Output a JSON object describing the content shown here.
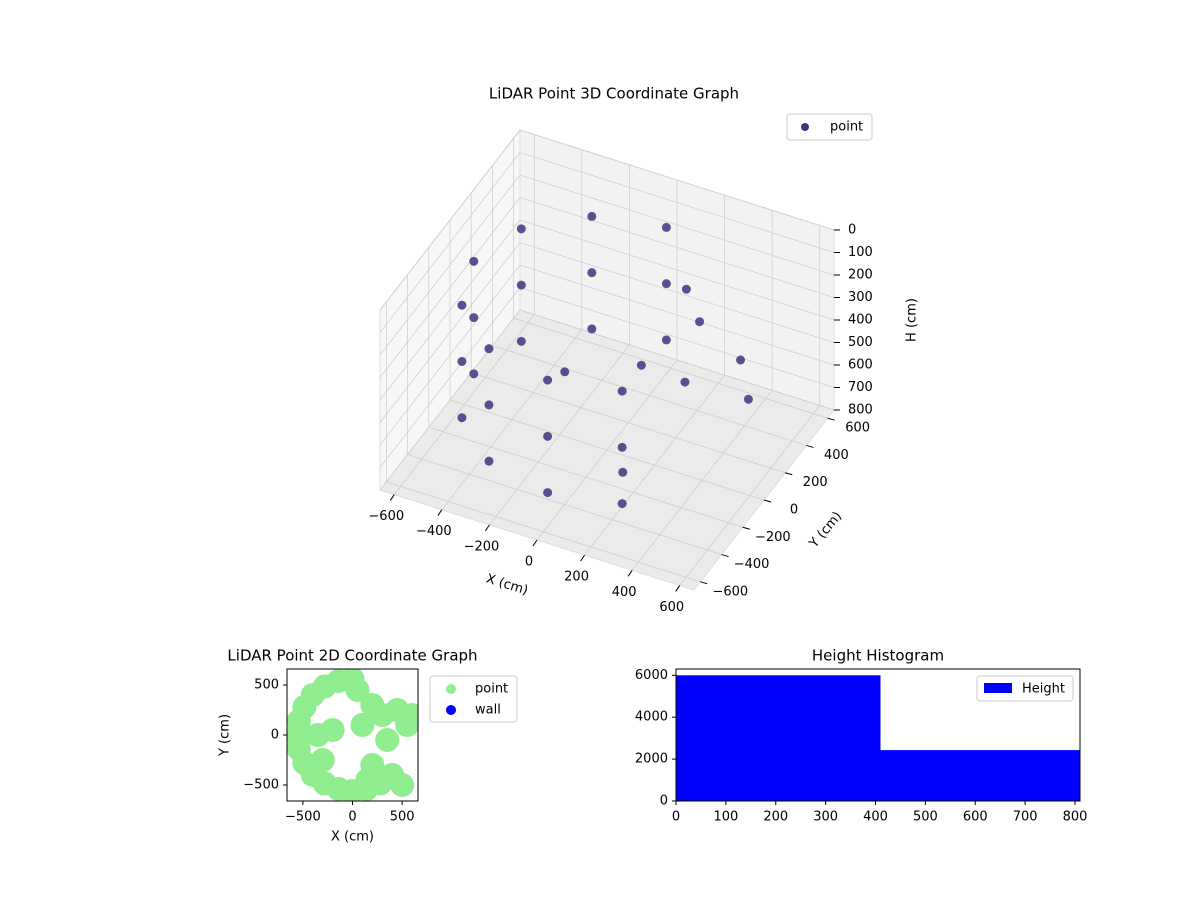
{
  "chart_data": [
    {
      "type": "scatter3d",
      "title": "LiDAR Point 3D Coordinate Graph",
      "xlabel": "X (cm)",
      "ylabel": "Y (cm)",
      "zlabel": "H (cm)",
      "legend": "upper right",
      "grid": true,
      "xlim": [
        -660,
        660
      ],
      "ylim": [
        -660,
        660
      ],
      "zlim": [
        800,
        0
      ],
      "xticks": [
        {
          "value": -600,
          "label": "−600"
        },
        {
          "value": -400,
          "label": "−400"
        },
        {
          "value": -200,
          "label": "−200"
        },
        0,
        200,
        400,
        600
      ],
      "yticks": [
        {
          "value": -600,
          "label": "−600"
        },
        {
          "value": -400,
          "label": "−400"
        },
        {
          "value": -200,
          "label": "−200"
        },
        0,
        200,
        400,
        600
      ],
      "zticks": [
        0,
        100,
        200,
        300,
        400,
        500,
        600,
        700,
        800
      ],
      "series": [
        {
          "name": "point",
          "color": "#46307e",
          "x": [
            0,
            0,
            0,
            -280,
            -280,
            -280,
            -485,
            -485,
            -485,
            -560,
            -560,
            -560,
            -485,
            -485,
            -485,
            -280,
            -280,
            -280,
            0,
            0,
            0,
            280,
            280,
            280,
            200,
            300,
            100,
            350,
            450,
            550,
            -200,
            200
          ],
          "y": [
            560,
            560,
            560,
            485,
            485,
            485,
            280,
            280,
            280,
            0,
            0,
            0,
            -280,
            -280,
            -280,
            -485,
            -485,
            -485,
            -560,
            -560,
            -560,
            -485,
            -485,
            -485,
            300,
            200,
            100,
            -50,
            250,
            100,
            50,
            -300
          ],
          "z": [
            150,
            400,
            650,
            150,
            400,
            650,
            150,
            400,
            650,
            150,
            400,
            650,
            150,
            400,
            650,
            150,
            400,
            650,
            150,
            400,
            650,
            150,
            400,
            650,
            200,
            250,
            450,
            350,
            400,
            450,
            550,
            650
          ]
        }
      ]
    },
    {
      "type": "scatter",
      "title": "LiDAR Point 2D Coordinate Graph",
      "xlabel": "X (cm)",
      "ylabel": "Y (cm)",
      "legend": "outside right",
      "xlim": [
        -660,
        660
      ],
      "ylim": [
        -660,
        660
      ],
      "xticks": [
        {
          "value": -500,
          "label": "−500"
        },
        0,
        500
      ],
      "yticks": [
        {
          "value": -500,
          "label": "−500"
        },
        0,
        500
      ],
      "series": [
        {
          "name": "point",
          "color": "#90ee90",
          "x": [
            0,
            -140,
            -280,
            -400,
            -485,
            -540,
            -560,
            -540,
            -485,
            -400,
            -280,
            -140,
            0,
            140,
            280,
            400,
            200,
            300,
            100,
            350,
            450,
            550,
            -200,
            200,
            -350,
            -300,
            50,
            150,
            500,
            600
          ],
          "y": [
            560,
            540,
            485,
            400,
            280,
            140,
            0,
            -140,
            -280,
            -400,
            -485,
            -540,
            -560,
            -540,
            -485,
            -400,
            300,
            200,
            100,
            -50,
            250,
            100,
            50,
            -300,
            0,
            -250,
            450,
            -450,
            -500,
            200
          ]
        },
        {
          "name": "wall",
          "color": "#0000ff",
          "x": [],
          "y": []
        }
      ]
    },
    {
      "type": "histogram",
      "title": "Height Histogram",
      "legend": "upper right",
      "color": "#0000ff",
      "series_name": "Height",
      "bins": [
        0,
        410,
        810
      ],
      "counts": [
        6000,
        2430
      ],
      "xlim": [
        0,
        810
      ],
      "ylim": [
        0,
        6300
      ],
      "xticks": [
        0,
        100,
        200,
        300,
        400,
        500,
        600,
        700,
        800
      ],
      "yticks": [
        0,
        2000,
        4000,
        6000
      ]
    }
  ]
}
